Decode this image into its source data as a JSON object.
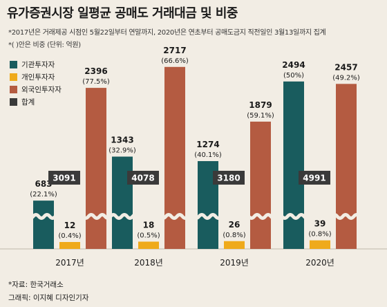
{
  "title": "유가증권시장 일평균 공매도 거래대금 및 비중",
  "notes": [
    "*2017년은 거래제공 시점인 5월22일부터 연말까지, 2020년은 연초부터 공매도금지 직전일인 3월13일까지 집계",
    "*( )안은 비중  (단위: 억원)"
  ],
  "source": "*자료: 한국거래소",
  "credit": "그래픽: 이지혜 디자인기자",
  "chart_data": {
    "type": "bar",
    "categories": [
      "2017년",
      "2018년",
      "2019년",
      "2020년"
    ],
    "series": [
      {
        "name": "기관투자자",
        "color": "#195c5e",
        "values": [
          683,
          1343,
          1274,
          2494
        ],
        "shares": [
          "(22.1%)",
          "(32.9%)",
          "(40.1%)",
          "(50%)"
        ]
      },
      {
        "name": "개인투자자",
        "color": "#efaa1b",
        "values": [
          12,
          18,
          26,
          39
        ],
        "shares": [
          "(0.4%)",
          "(0.5%)",
          "(0.8%)",
          "(0.8%)"
        ]
      },
      {
        "name": "외국인투자자",
        "color": "#b45b41",
        "values": [
          2396,
          2717,
          1879,
          2457
        ],
        "shares": [
          "(77.5%)",
          "(66.6%)",
          "(59.1%)",
          "(49.2%)"
        ]
      }
    ],
    "totals": {
      "name": "합계",
      "color": "#3a3a3a",
      "values": [
        3091,
        4078,
        3180,
        4991
      ]
    },
    "axis_break": true,
    "legend_position": "top-left"
  }
}
